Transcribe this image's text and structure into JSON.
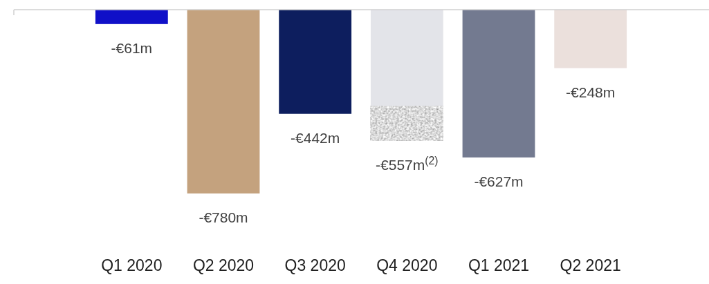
{
  "chart_data": {
    "type": "bar",
    "categories": [
      "Q1 2020",
      "Q2 2020",
      "Q3 2020",
      "Q4 2020",
      "Q1 2021",
      "Q2 2021"
    ],
    "colors": [
      "#1010c8",
      "#c4a27e",
      "#0d1e5e",
      "#e3e4e9",
      "#737a90",
      "#ebe0dc"
    ],
    "values": [
      -61,
      -780,
      -442,
      -557,
      -627,
      -248
    ],
    "value_labels": [
      "-€61m",
      "-€780m",
      "-€442m",
      "-€557m$^{(2)}$",
      "-€627m",
      "-€248m"
    ]
  }
}
